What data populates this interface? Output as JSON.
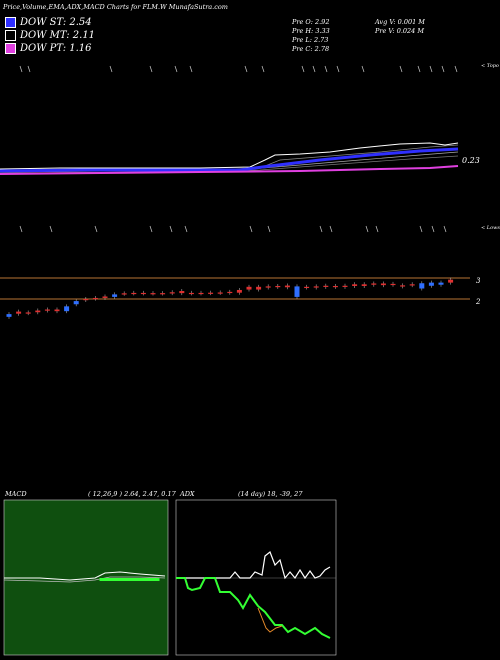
{
  "header": {
    "title": "Price,Volume,EMA,ADX,MACD Charts for FLM.W MunafaSutra.com"
  },
  "legend": [
    {
      "label": "DOW ST: 2.54",
      "color": "#2f2fff"
    },
    {
      "label": "DOW MT: 2.11",
      "color": "#000000"
    },
    {
      "label": "DOW PT: 1.16",
      "color": "#e040e0"
    }
  ],
  "stats": {
    "open": "Pre   O: 2.92",
    "high": "Pre   H: 3.33",
    "low": "Pre   L: 2.73",
    "close": "Pre   C: 2.78",
    "avg_vol": "Avg V: 0.001 M",
    "pre_vol": "Pre   V: 0.024   M"
  },
  "labels": {
    "topo": "< Topo",
    "lows": "< Lows",
    "ema_value": "0.23",
    "price_3": "3",
    "price_2": "2",
    "macd": "MACD",
    "macd_values": "( 12,26,9 ) 2.64,  2.47,  0.17",
    "adx": "ADX",
    "adx_values": "(14  day) 18,  -39,  27"
  },
  "colors": {
    "up": "#e03030",
    "down": "#2f6fff",
    "ema_short": "#2f2fff",
    "ema_long": "#e040e0",
    "hline": "#b87333",
    "macd_bg": "#0f4f0f",
    "adx_plus": "#ffffff",
    "adx_minus": "#33ff33",
    "adx_line": "#e88a2a"
  },
  "chart_data": [
    {
      "type": "candlestick",
      "levels": [
        3,
        2
      ],
      "candles": [
        {
          "o": 1.15,
          "c": 1.28,
          "d": "down"
        },
        {
          "o": 1.3,
          "c": 1.4,
          "d": "up"
        },
        {
          "o": 1.33,
          "c": 1.36,
          "d": "up"
        },
        {
          "o": 1.37,
          "c": 1.45,
          "d": "up"
        },
        {
          "o": 1.45,
          "c": 1.5,
          "d": "up"
        },
        {
          "o": 1.42,
          "c": 1.5,
          "d": "up"
        },
        {
          "o": 1.42,
          "c": 1.65,
          "d": "down"
        },
        {
          "o": 1.75,
          "c": 1.9,
          "d": "down"
        },
        {
          "o": 1.95,
          "c": 2.0,
          "d": "up"
        },
        {
          "o": 2.02,
          "c": 2.05,
          "d": "up"
        },
        {
          "o": 2.05,
          "c": 2.12,
          "d": "up"
        },
        {
          "o": 2.1,
          "c": 2.22,
          "d": "down"
        },
        {
          "o": 2.25,
          "c": 2.27,
          "d": "up"
        },
        {
          "o": 2.27,
          "c": 2.29,
          "d": "up"
        },
        {
          "o": 2.27,
          "c": 2.29,
          "d": "up"
        },
        {
          "o": 2.26,
          "c": 2.28,
          "d": "up"
        },
        {
          "o": 2.26,
          "c": 2.28,
          "d": "up"
        },
        {
          "o": 2.28,
          "c": 2.32,
          "d": "up"
        },
        {
          "o": 2.28,
          "c": 2.38,
          "d": "up"
        },
        {
          "o": 2.27,
          "c": 2.29,
          "d": "up"
        },
        {
          "o": 2.27,
          "c": 2.29,
          "d": "up"
        },
        {
          "o": 2.28,
          "c": 2.3,
          "d": "up"
        },
        {
          "o": 2.29,
          "c": 2.31,
          "d": "up"
        },
        {
          "o": 2.3,
          "c": 2.34,
          "d": "up"
        },
        {
          "o": 2.3,
          "c": 2.43,
          "d": "up"
        },
        {
          "o": 2.45,
          "c": 2.58,
          "d": "up"
        },
        {
          "o": 2.45,
          "c": 2.58,
          "d": "up"
        },
        {
          "o": 2.55,
          "c": 2.6,
          "d": "up"
        },
        {
          "o": 2.58,
          "c": 2.62,
          "d": "up"
        },
        {
          "o": 2.56,
          "c": 2.64,
          "d": "up"
        },
        {
          "o": 2.1,
          "c": 2.6,
          "d": "down"
        },
        {
          "o": 2.55,
          "c": 2.58,
          "d": "up"
        },
        {
          "o": 2.55,
          "c": 2.6,
          "d": "up"
        },
        {
          "o": 2.58,
          "c": 2.63,
          "d": "up"
        },
        {
          "o": 2.58,
          "c": 2.62,
          "d": "up"
        },
        {
          "o": 2.58,
          "c": 2.63,
          "d": "up"
        },
        {
          "o": 2.62,
          "c": 2.7,
          "d": "up"
        },
        {
          "o": 2.62,
          "c": 2.7,
          "d": "up"
        },
        {
          "o": 2.68,
          "c": 2.74,
          "d": "up"
        },
        {
          "o": 2.66,
          "c": 2.74,
          "d": "up"
        },
        {
          "o": 2.68,
          "c": 2.72,
          "d": "up"
        },
        {
          "o": 2.6,
          "c": 2.65,
          "d": "up"
        },
        {
          "o": 2.66,
          "c": 2.7,
          "d": "up"
        },
        {
          "o": 2.5,
          "c": 2.75,
          "d": "down"
        },
        {
          "o": 2.63,
          "c": 2.78,
          "d": "down"
        },
        {
          "o": 2.68,
          "c": 2.78,
          "d": "down"
        },
        {
          "o": 2.78,
          "c": 2.92,
          "d": "up"
        }
      ]
    },
    {
      "type": "line",
      "title": "MACD",
      "values": [
        2.64,
        2.47,
        0.17
      ]
    },
    {
      "type": "line",
      "title": "ADX",
      "values": [
        18,
        -39,
        27
      ]
    }
  ]
}
